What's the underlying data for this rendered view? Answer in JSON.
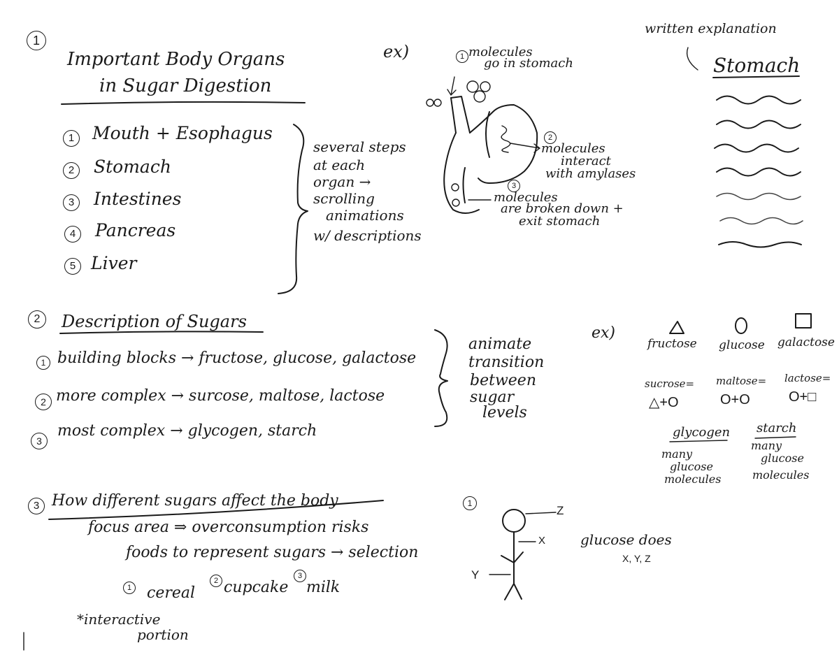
{
  "section1": {
    "number": "1",
    "title_line1": "Important Body Organs",
    "title_line2": "in Sugar Digestion",
    "organs": [
      {
        "num": "1",
        "label": "Mouth + Esophagus"
      },
      {
        "num": "2",
        "label": "Stomach"
      },
      {
        "num": "3",
        "label": "Intestines"
      },
      {
        "num": "4",
        "label": "Pancreas"
      },
      {
        "num": "5",
        "label": "Liver"
      }
    ],
    "note_lines": [
      "several steps",
      "at each",
      "organ →",
      "scrolling",
      "animations",
      "w/ descriptions"
    ],
    "example_label": "ex)",
    "steps": [
      {
        "num": "1",
        "line1": "molecules",
        "line2": "go in stomach"
      },
      {
        "num": "2",
        "line1": "molecules",
        "line2": "interact",
        "line3": "with amylases"
      },
      {
        "num": "3",
        "line1": "molecules",
        "line2": "are broken down +",
        "line3": "exit stomach"
      }
    ],
    "written_explanation": "written explanation",
    "stomach_heading": "Stomach"
  },
  "section2": {
    "number": "2",
    "title": "Description of Sugars",
    "levels": [
      {
        "num": "1",
        "label": "building blocks → fructose, glucose, galactose"
      },
      {
        "num": "2",
        "label": "more complex → surcose, maltose, lactose"
      },
      {
        "num": "3",
        "label": "most complex → glycogen, starch"
      }
    ],
    "note_lines": [
      "animate",
      "transition",
      "between",
      "sugar",
      "levels"
    ],
    "example_label": "ex)",
    "simple_sugars": [
      "fructose",
      "glucose",
      "galactose"
    ],
    "disaccharides": [
      {
        "name": "sucrose=",
        "formula": "△+O"
      },
      {
        "name": "maltose=",
        "formula": "O+O"
      },
      {
        "name": "lactose=",
        "formula": "O+□"
      }
    ],
    "polysaccharides": [
      {
        "name": "glycogen",
        "lines": [
          "many",
          "glucose",
          "molecules"
        ]
      },
      {
        "name": "starch",
        "lines": [
          "many",
          "glucose",
          "molecules"
        ]
      }
    ]
  },
  "section3": {
    "number": "3",
    "title": "How different sugars affect the body",
    "focus": "focus area ⇒ overconsumption risks",
    "foods_line": "foods to represent sugars → selection",
    "foods": [
      {
        "num": "1",
        "label": "cereal"
      },
      {
        "num": "2",
        "label": "cupcake"
      },
      {
        "num": "3",
        "label": "milk"
      }
    ],
    "interactive_line1": "*interactive",
    "interactive_line2": "portion",
    "figure_num": "1",
    "figure_labels": {
      "z": "Z",
      "x": "X",
      "y": "Y"
    },
    "glucose_does": "glucose does",
    "xyz": "X, Y, Z"
  }
}
